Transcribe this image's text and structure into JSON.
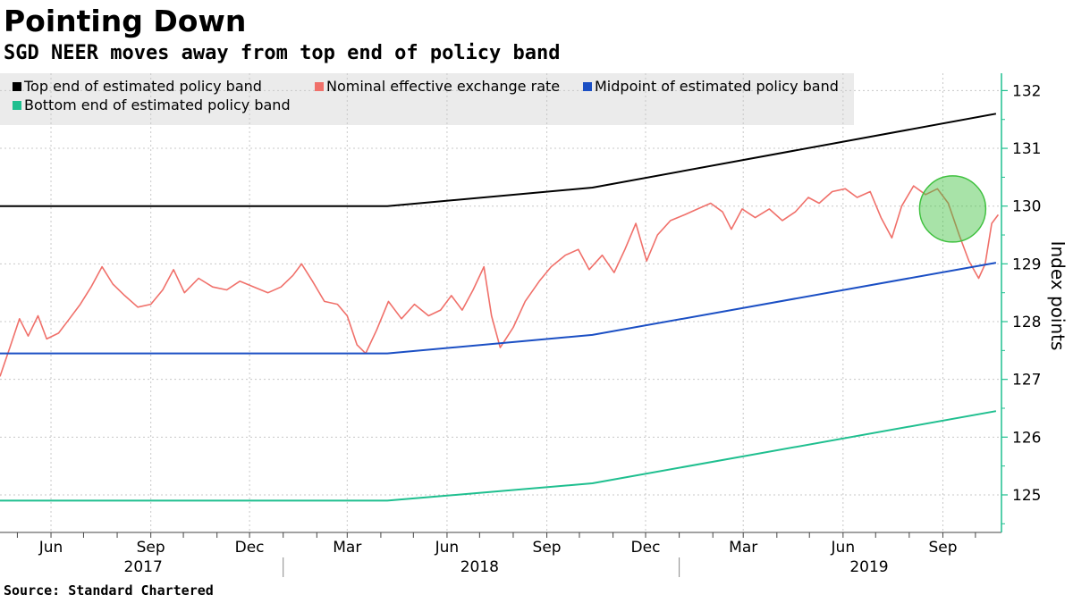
{
  "header": {
    "title": "Pointing Down",
    "subtitle": "SGD NEER moves away from top end of policy band"
  },
  "footer": {
    "source": "Source: Standard Chartered"
  },
  "chart_data": {
    "type": "line",
    "ylabel": "Index points",
    "ylim": [
      124.35,
      132.3
    ],
    "xlim": [
      "2017-04-15",
      "2019-10-25"
    ],
    "y_ticks": [
      125,
      126,
      127,
      128,
      129,
      130,
      131,
      132
    ],
    "x_month_ticks": [
      {
        "label": "Jun",
        "date": "2017-06-01"
      },
      {
        "label": "Sep",
        "date": "2017-09-01"
      },
      {
        "label": "Dec",
        "date": "2017-12-01"
      },
      {
        "label": "Mar",
        "date": "2018-03-01"
      },
      {
        "label": "Jun",
        "date": "2018-06-01"
      },
      {
        "label": "Sep",
        "date": "2018-09-01"
      },
      {
        "label": "Dec",
        "date": "2018-12-01"
      },
      {
        "label": "Mar",
        "date": "2019-03-01"
      },
      {
        "label": "Jun",
        "date": "2019-06-01"
      },
      {
        "label": "Sep",
        "date": "2019-09-01"
      }
    ],
    "x_year_labels": [
      {
        "label": "2017",
        "date": "2017-08-25"
      },
      {
        "label": "2018",
        "date": "2018-07-01"
      },
      {
        "label": "2019",
        "date": "2019-06-25"
      }
    ],
    "year_separators": [
      "2018-01-01",
      "2019-01-01"
    ],
    "grid": true,
    "legend_position": "top-left",
    "highlight": {
      "date": "2019-09-10",
      "value": 129.95,
      "color": "#3fc13f"
    },
    "series": [
      {
        "name": "Top end of estimated policy band",
        "color": "#000000",
        "points": [
          [
            "2017-04-15",
            130.0
          ],
          [
            "2018-04-07",
            130.0
          ],
          [
            "2018-10-13",
            130.32
          ],
          [
            "2019-10-20",
            131.6
          ]
        ]
      },
      {
        "name": "Nominal effective exchange rate",
        "color": "#f0706a",
        "points": [
          [
            "2017-04-15",
            127.05
          ],
          [
            "2017-04-25",
            127.6
          ],
          [
            "2017-05-03",
            128.05
          ],
          [
            "2017-05-11",
            127.75
          ],
          [
            "2017-05-20",
            128.1
          ],
          [
            "2017-05-28",
            127.7
          ],
          [
            "2017-06-08",
            127.8
          ],
          [
            "2017-06-18",
            128.05
          ],
          [
            "2017-06-28",
            128.3
          ],
          [
            "2017-07-08",
            128.6
          ],
          [
            "2017-07-18",
            128.95
          ],
          [
            "2017-07-28",
            128.65
          ],
          [
            "2017-08-08",
            128.45
          ],
          [
            "2017-08-20",
            128.25
          ],
          [
            "2017-09-01",
            128.3
          ],
          [
            "2017-09-12",
            128.55
          ],
          [
            "2017-09-22",
            128.9
          ],
          [
            "2017-10-02",
            128.5
          ],
          [
            "2017-10-15",
            128.75
          ],
          [
            "2017-10-28",
            128.6
          ],
          [
            "2017-11-10",
            128.55
          ],
          [
            "2017-11-22",
            128.7
          ],
          [
            "2017-12-05",
            128.6
          ],
          [
            "2017-12-18",
            128.5
          ],
          [
            "2017-12-30",
            128.6
          ],
          [
            "2018-01-10",
            128.8
          ],
          [
            "2018-01-18",
            129.0
          ],
          [
            "2018-01-28",
            128.7
          ],
          [
            "2018-02-08",
            128.35
          ],
          [
            "2018-02-20",
            128.3
          ],
          [
            "2018-03-01",
            128.1
          ],
          [
            "2018-03-10",
            127.6
          ],
          [
            "2018-03-18",
            127.45
          ],
          [
            "2018-03-28",
            127.85
          ],
          [
            "2018-04-08",
            128.35
          ],
          [
            "2018-04-20",
            128.05
          ],
          [
            "2018-05-02",
            128.3
          ],
          [
            "2018-05-15",
            128.1
          ],
          [
            "2018-05-26",
            128.2
          ],
          [
            "2018-06-05",
            128.45
          ],
          [
            "2018-06-15",
            128.2
          ],
          [
            "2018-06-25",
            128.55
          ],
          [
            "2018-07-05",
            128.95
          ],
          [
            "2018-07-12",
            128.1
          ],
          [
            "2018-07-20",
            127.55
          ],
          [
            "2018-08-01",
            127.9
          ],
          [
            "2018-08-12",
            128.35
          ],
          [
            "2018-08-25",
            128.7
          ],
          [
            "2018-09-05",
            128.95
          ],
          [
            "2018-09-18",
            129.15
          ],
          [
            "2018-09-30",
            129.25
          ],
          [
            "2018-10-10",
            128.9
          ],
          [
            "2018-10-22",
            129.15
          ],
          [
            "2018-11-02",
            128.85
          ],
          [
            "2018-11-12",
            129.25
          ],
          [
            "2018-11-22",
            129.7
          ],
          [
            "2018-12-02",
            129.05
          ],
          [
            "2018-12-12",
            129.5
          ],
          [
            "2018-12-24",
            129.75
          ],
          [
            "2019-01-06",
            129.85
          ],
          [
            "2019-01-18",
            129.95
          ],
          [
            "2019-01-30",
            130.05
          ],
          [
            "2019-02-10",
            129.9
          ],
          [
            "2019-02-18",
            129.6
          ],
          [
            "2019-02-28",
            129.95
          ],
          [
            "2019-03-12",
            129.8
          ],
          [
            "2019-03-25",
            129.95
          ],
          [
            "2019-04-06",
            129.75
          ],
          [
            "2019-04-18",
            129.9
          ],
          [
            "2019-04-30",
            130.15
          ],
          [
            "2019-05-10",
            130.05
          ],
          [
            "2019-05-22",
            130.25
          ],
          [
            "2019-06-03",
            130.3
          ],
          [
            "2019-06-14",
            130.15
          ],
          [
            "2019-06-26",
            130.25
          ],
          [
            "2019-07-06",
            129.8
          ],
          [
            "2019-07-16",
            129.45
          ],
          [
            "2019-07-25",
            130.0
          ],
          [
            "2019-08-05",
            130.35
          ],
          [
            "2019-08-16",
            130.2
          ],
          [
            "2019-08-27",
            130.3
          ],
          [
            "2019-09-06",
            130.05
          ],
          [
            "2019-09-16",
            129.5
          ],
          [
            "2019-09-25",
            129.05
          ],
          [
            "2019-10-04",
            128.75
          ],
          [
            "2019-10-10",
            129.0
          ],
          [
            "2019-10-16",
            129.7
          ],
          [
            "2019-10-22",
            129.85
          ]
        ]
      },
      {
        "name": "Midpoint of estimated policy band",
        "color": "#1b4fc4",
        "points": [
          [
            "2017-04-15",
            127.45
          ],
          [
            "2018-04-07",
            127.45
          ],
          [
            "2018-10-13",
            127.77
          ],
          [
            "2019-10-20",
            129.02
          ]
        ]
      },
      {
        "name": "Bottom end of estimated policy band",
        "color": "#1fbf8f",
        "points": [
          [
            "2017-04-15",
            124.9
          ],
          [
            "2018-04-07",
            124.9
          ],
          [
            "2018-10-13",
            125.2
          ],
          [
            "2019-10-20",
            126.45
          ]
        ]
      }
    ]
  }
}
